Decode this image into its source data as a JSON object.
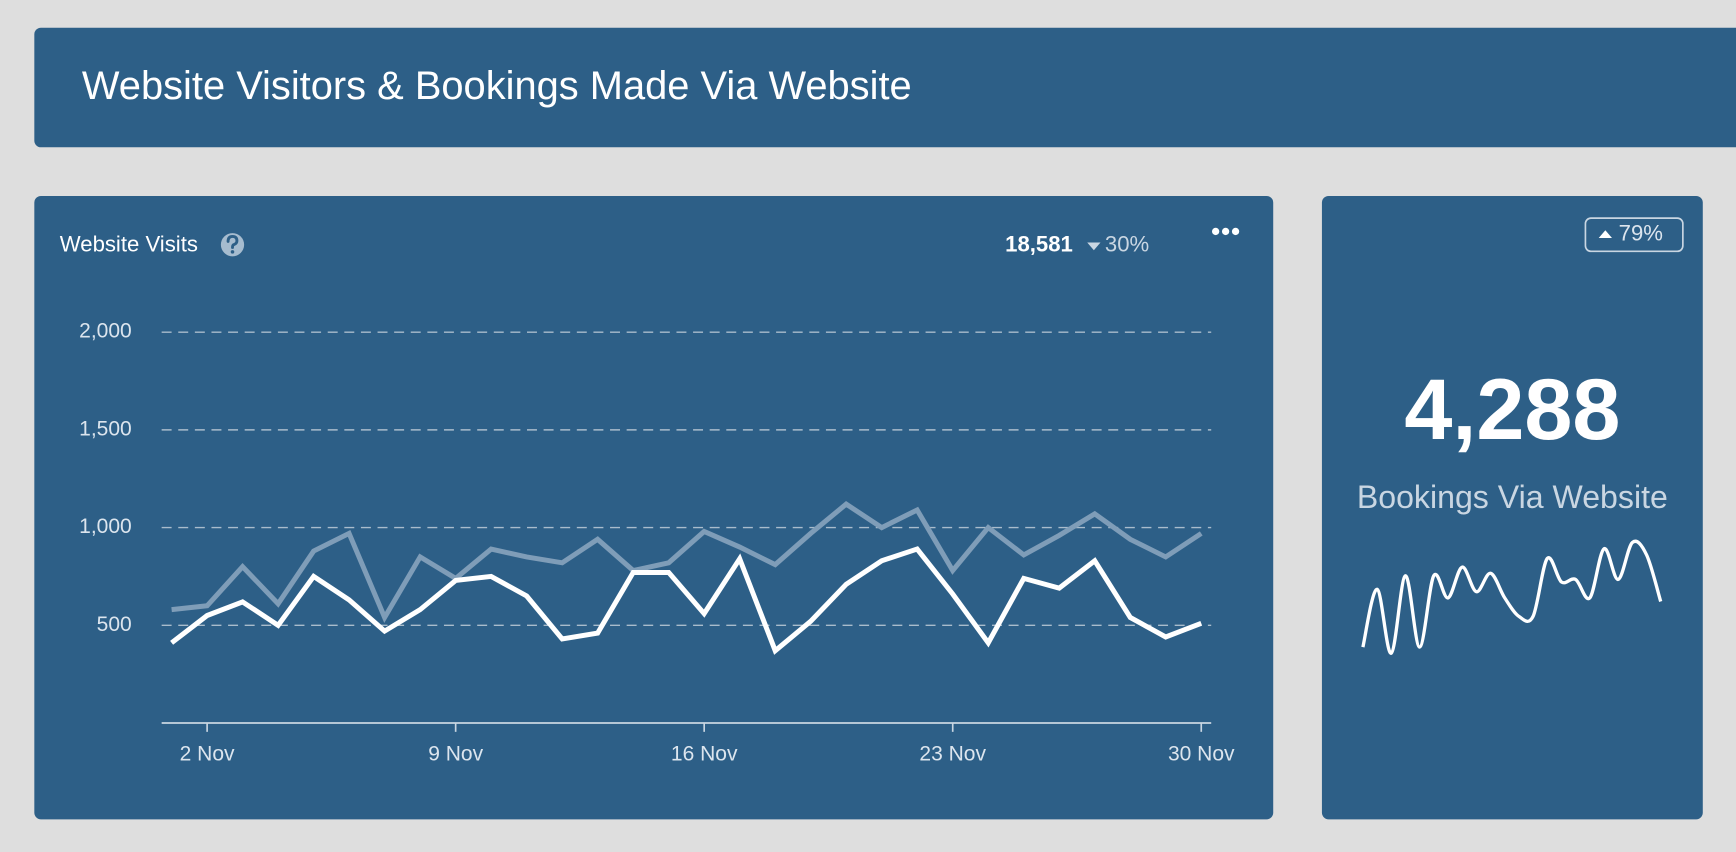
{
  "header": {
    "title": "Website Visitors & Bookings Made Via Website"
  },
  "chart_data": [
    {
      "type": "line",
      "title": "Website Visits",
      "total": "18,581",
      "change": "30%",
      "categories": [
        null,
        "2 Nov",
        null,
        null,
        null,
        null,
        null,
        null,
        "9 Nov",
        null,
        null,
        null,
        null,
        null,
        null,
        "16 Nov",
        null,
        null,
        null,
        null,
        null,
        null,
        "23 Nov",
        null,
        null,
        null,
        null,
        null,
        null,
        "30 Nov"
      ],
      "series": [
        {
          "color": "#7f9db8",
          "values": [
            580,
            600,
            800,
            610,
            880,
            970,
            540,
            850,
            740,
            890,
            850,
            820,
            940,
            780,
            820,
            980,
            900,
            810,
            970,
            1120,
            1000,
            1090,
            780,
            1000,
            860,
            960,
            1070,
            940,
            850,
            970
          ]
        },
        {
          "color": "#ffffff",
          "values": [
            410,
            550,
            620,
            500,
            750,
            630,
            470,
            580,
            730,
            750,
            650,
            430,
            460,
            770,
            770,
            560,
            840,
            370,
            520,
            710,
            830,
            890,
            660,
            410,
            740,
            690,
            830,
            540,
            440,
            510
          ]
        }
      ],
      "ylim": [
        0,
        2000
      ],
      "yticks": [
        500,
        {
          "value": 1000,
          "label": "1,000"
        },
        {
          "value": 1500,
          "label": "1,500"
        },
        {
          "value": 2000,
          "label": "2,000"
        }
      ],
      "grid": true
    },
    {
      "type": "sparkline",
      "title": "Bookings Via Website",
      "total": "4,288",
      "change": "79%",
      "color": "#ffffff",
      "values": [
        20,
        67,
        15,
        78,
        20,
        78,
        60,
        85,
        65,
        80,
        60,
        45,
        45,
        92,
        73,
        75,
        60,
        100,
        75,
        105,
        95,
        57
      ]
    }
  ]
}
